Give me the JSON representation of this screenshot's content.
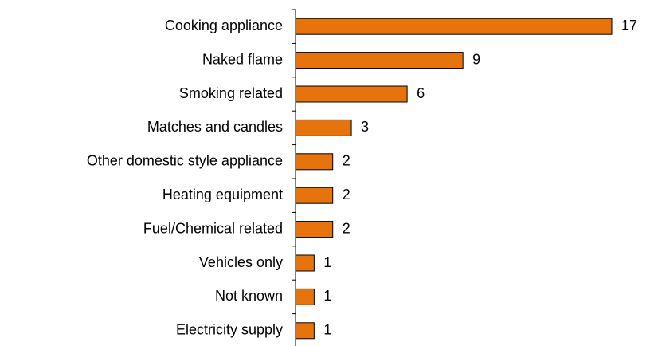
{
  "chart_data": {
    "type": "bar",
    "orientation": "horizontal",
    "categories": [
      "Cooking appliance",
      "Naked flame",
      "Smoking related",
      "Matches and candles",
      "Other domestic style appliance",
      "Heating equipment",
      "Fuel/Chemical related",
      "Vehicles only",
      "Not known",
      "Electricity supply"
    ],
    "values": [
      17,
      9,
      6,
      3,
      2,
      2,
      2,
      1,
      1,
      1
    ],
    "color": "#e6730b"
  }
}
